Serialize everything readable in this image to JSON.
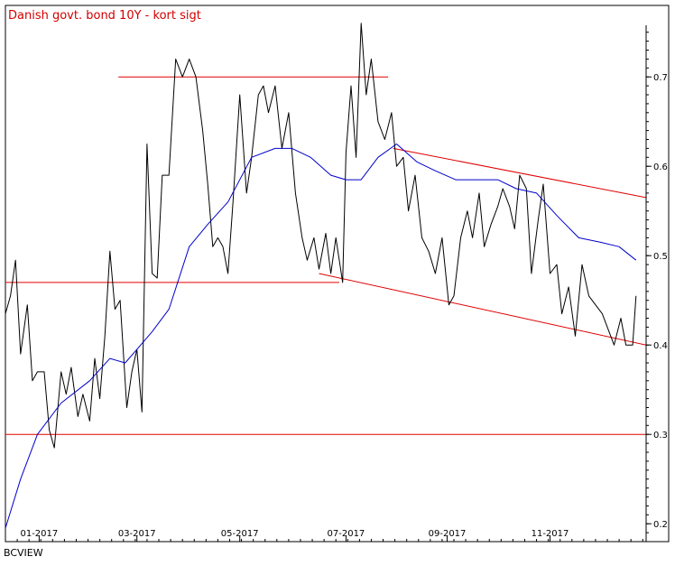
{
  "chart_data": {
    "type": "line",
    "title": "Danish govt. bond 10Y - kort sigt",
    "source": "BCVIEW",
    "xlabel": "",
    "ylabel": "",
    "ylim": [
      0.18,
      0.78
    ],
    "xlim": [
      "2016-12-13",
      "2017-12-28"
    ],
    "y_axis_position": "right",
    "grid": false,
    "legend": "none",
    "x_ticks": [
      {
        "label": "01-2017",
        "date": "2017-01-02"
      },
      {
        "label": "03-2017",
        "date": "2017-03-01"
      },
      {
        "label": "05-2017",
        "date": "2017-05-01"
      },
      {
        "label": "07-2017",
        "date": "2017-07-03"
      },
      {
        "label": "09-2017",
        "date": "2017-09-01"
      },
      {
        "label": "11-2017",
        "date": "2017-11-01"
      }
    ],
    "y_ticks": [
      {
        "label": "0.2",
        "value": 0.2
      },
      {
        "label": "0.3",
        "value": 0.3
      },
      {
        "label": "0.4",
        "value": 0.4
      },
      {
        "label": "0.5",
        "value": 0.5
      },
      {
        "label": "0.6",
        "value": 0.6
      },
      {
        "label": "0.7",
        "value": 0.7
      }
    ],
    "colors": {
      "price": "#000000",
      "ma": "#0000cc",
      "levels": "#e00000",
      "title": "#d00000"
    },
    "series": [
      {
        "key": "price",
        "x": [
          "2016-12-13",
          "2016-12-16",
          "2016-12-19",
          "2016-12-22",
          "2016-12-26",
          "2016-12-29",
          "2017-01-01",
          "2017-01-05",
          "2017-01-08",
          "2017-01-11",
          "2017-01-15",
          "2017-01-18",
          "2017-01-21",
          "2017-01-25",
          "2017-01-28",
          "2017-02-01",
          "2017-02-04",
          "2017-02-07",
          "2017-02-10",
          "2017-02-13",
          "2017-02-16",
          "2017-02-19",
          "2017-02-23",
          "2017-02-26",
          "2017-03-01",
          "2017-03-04",
          "2017-03-07",
          "2017-03-10",
          "2017-03-13",
          "2017-03-16",
          "2017-03-20",
          "2017-03-24",
          "2017-03-28",
          "2017-04-01",
          "2017-04-05",
          "2017-04-09",
          "2017-04-12",
          "2017-04-15",
          "2017-04-18",
          "2017-04-21",
          "2017-04-24",
          "2017-04-27",
          "2017-05-01",
          "2017-05-05",
          "2017-05-08",
          "2017-05-12",
          "2017-05-15",
          "2017-05-18",
          "2017-05-22",
          "2017-05-26",
          "2017-05-30",
          "2017-06-03",
          "2017-06-07",
          "2017-06-10",
          "2017-06-14",
          "2017-06-17",
          "2017-06-21",
          "2017-06-24",
          "2017-06-27",
          "2017-07-01",
          "2017-07-03",
          "2017-07-06",
          "2017-07-09",
          "2017-07-12",
          "2017-07-15",
          "2017-07-18",
          "2017-07-22",
          "2017-07-26",
          "2017-07-30",
          "2017-08-02",
          "2017-08-06",
          "2017-08-09",
          "2017-08-13",
          "2017-08-17",
          "2017-08-21",
          "2017-08-25",
          "2017-08-29",
          "2017-09-02",
          "2017-09-05",
          "2017-09-09",
          "2017-09-13",
          "2017-09-16",
          "2017-09-20",
          "2017-09-23",
          "2017-09-27",
          "2017-10-01",
          "2017-10-04",
          "2017-10-08",
          "2017-10-11",
          "2017-10-14",
          "2017-10-18",
          "2017-10-21",
          "2017-10-25",
          "2017-10-28",
          "2017-11-01",
          "2017-11-05",
          "2017-11-08",
          "2017-11-12",
          "2017-11-16",
          "2017-11-20",
          "2017-11-24",
          "2017-11-28",
          "2017-12-02",
          "2017-12-06",
          "2017-12-09",
          "2017-12-13",
          "2017-12-16",
          "2017-12-20",
          "2017-12-22"
        ],
        "y": [
          0.435,
          0.455,
          0.495,
          0.39,
          0.445,
          0.36,
          0.37,
          0.37,
          0.305,
          0.285,
          0.37,
          0.345,
          0.375,
          0.32,
          0.345,
          0.315,
          0.385,
          0.34,
          0.41,
          0.505,
          0.44,
          0.45,
          0.33,
          0.37,
          0.395,
          0.325,
          0.625,
          0.48,
          0.475,
          0.59,
          0.59,
          0.72,
          0.7,
          0.72,
          0.7,
          0.64,
          0.58,
          0.51,
          0.52,
          0.51,
          0.48,
          0.56,
          0.68,
          0.57,
          0.61,
          0.68,
          0.69,
          0.66,
          0.69,
          0.62,
          0.66,
          0.57,
          0.52,
          0.495,
          0.52,
          0.485,
          0.525,
          0.48,
          0.52,
          0.47,
          0.615,
          0.69,
          0.61,
          0.76,
          0.68,
          0.72,
          0.65,
          0.63,
          0.66,
          0.6,
          0.61,
          0.55,
          0.59,
          0.52,
          0.505,
          0.48,
          0.52,
          0.445,
          0.455,
          0.52,
          0.55,
          0.52,
          0.57,
          0.51,
          0.535,
          0.555,
          0.575,
          0.555,
          0.53,
          0.59,
          0.575,
          0.48,
          0.54,
          0.58,
          0.48,
          0.49,
          0.435,
          0.465,
          0.41,
          0.49,
          0.455,
          0.445,
          0.435,
          0.415,
          0.4,
          0.43,
          0.4,
          0.4,
          0.455
        ]
      },
      {
        "key": "ma",
        "x": [
          "2016-12-13",
          "2016-12-22",
          "2017-01-01",
          "2017-01-15",
          "2017-02-01",
          "2017-02-13",
          "2017-02-22",
          "2017-03-01",
          "2017-03-10",
          "2017-03-20",
          "2017-04-01",
          "2017-04-12",
          "2017-04-24",
          "2017-05-08",
          "2017-05-22",
          "2017-06-01",
          "2017-06-12",
          "2017-06-24",
          "2017-07-03",
          "2017-07-12",
          "2017-07-22",
          "2017-08-02",
          "2017-08-14",
          "2017-08-25",
          "2017-09-06",
          "2017-09-18",
          "2017-10-01",
          "2017-10-12",
          "2017-10-24",
          "2017-11-05",
          "2017-11-18",
          "2017-12-01",
          "2017-12-12",
          "2017-12-22"
        ],
        "y": [
          0.195,
          0.25,
          0.3,
          0.335,
          0.36,
          0.385,
          0.38,
          0.395,
          0.415,
          0.44,
          0.51,
          0.535,
          0.56,
          0.61,
          0.62,
          0.62,
          0.61,
          0.59,
          0.585,
          0.585,
          0.61,
          0.625,
          0.605,
          0.595,
          0.585,
          0.585,
          0.585,
          0.575,
          0.57,
          0.545,
          0.52,
          0.515,
          0.51,
          0.495
        ]
      }
    ],
    "reference_lines": [
      {
        "label": "horizontal",
        "x": [
          "2017-02-18",
          "2017-07-28"
        ],
        "y": [
          0.7,
          0.7
        ]
      },
      {
        "label": "horizontal",
        "x": [
          "2016-12-13",
          "2017-06-29"
        ],
        "y": [
          0.47,
          0.47
        ]
      },
      {
        "label": "horizontal",
        "x": [
          "2016-12-13",
          "2017-12-28"
        ],
        "y": [
          0.3,
          0.3
        ]
      },
      {
        "label": "channel-upper",
        "x": [
          "2017-07-31",
          "2017-12-28"
        ],
        "y": [
          0.62,
          0.565
        ]
      },
      {
        "label": "channel-lower",
        "x": [
          "2017-06-17",
          "2017-12-28"
        ],
        "y": [
          0.48,
          0.4
        ]
      }
    ]
  }
}
